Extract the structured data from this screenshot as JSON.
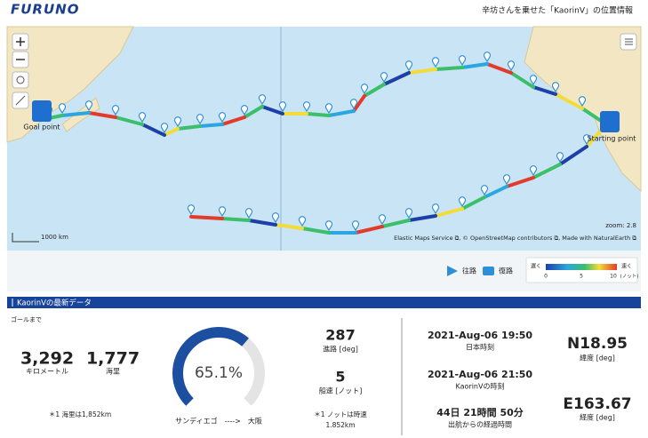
{
  "header": {
    "logo": "FURUNO",
    "title": "辛坊さんを乗せた「KaorinⅤ」の位置情報"
  },
  "map": {
    "goal_label": "Goal point",
    "start_label": "Starting point",
    "scale": "1000 km",
    "zoom": "zoom: 2.8",
    "attribution": "Elastic Maps Service ⧉, © OpenStreetMap contributors ⧉, Made with NaturalEarth ⧉"
  },
  "legend": {
    "outbound": "往路",
    "return": "復路",
    "slow": "遅く",
    "fast": "速く",
    "ticks": [
      "0",
      "5",
      "10"
    ],
    "unit": "(ノット)"
  },
  "section_title": "KaorinⅤの最新データ",
  "distance": {
    "heading": "ゴールまで",
    "km": "3,292",
    "km_unit": "キロメートル",
    "nm": "1,777",
    "nm_unit": "海里",
    "note": "＊1 海里は1,852km"
  },
  "progress": {
    "value": 65.1,
    "label": "65.1%",
    "route": "サンディエゴ　---->　大阪"
  },
  "course": {
    "value": "287",
    "unit": "進路 [deg]"
  },
  "speed": {
    "value": "5",
    "unit": "船速 [ノット]",
    "note1": "＊1 ノットは時速",
    "note2": "1.852km"
  },
  "times": {
    "japan": "2021-Aug-06 19:50",
    "japan_label": "日本時刻",
    "local": "2021-Aug-06 21:50",
    "local_label": "KaorinⅤの時刻",
    "elapsed": "44日 21時間 50分",
    "elapsed_label": "出航からの経過時間"
  },
  "position": {
    "lat": "N18.95",
    "lat_label": "緯度 [deg]",
    "lon": "E163.67",
    "lon_label": "経度 [deg]"
  }
}
